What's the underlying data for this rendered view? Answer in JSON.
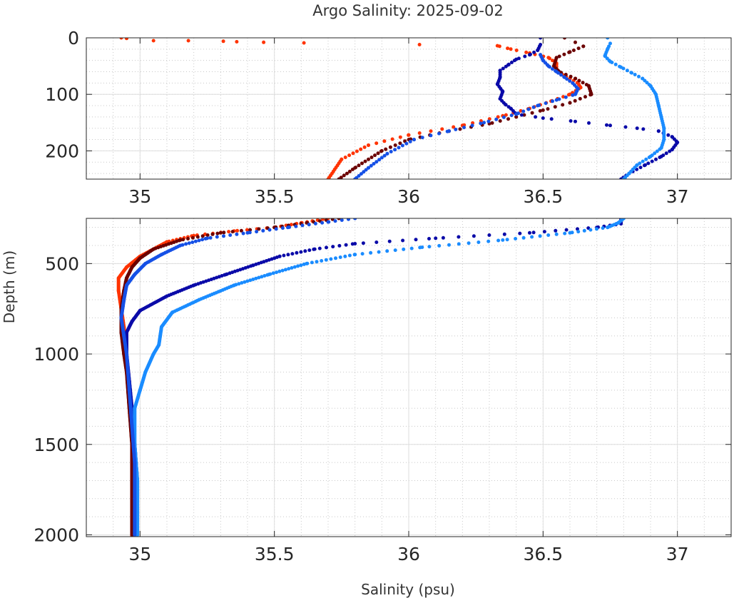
{
  "chart_data": {
    "type": "scatter",
    "title": "Argo Salinity: 2025-09-02",
    "xlabel": "Salinity (psu)",
    "ylabel": "Depth (m)",
    "grid": true,
    "grid_minor": true,
    "y_inverted": true,
    "panels": [
      {
        "id": "upper",
        "xlim": [
          34.8,
          37.2
        ],
        "ylim": [
          0,
          250
        ],
        "xticks": [
          35,
          35.5,
          36,
          36.5,
          37
        ],
        "xtick_labels": [
          "35",
          "35.5",
          "36",
          "36.5",
          "37"
        ],
        "yticks": [
          0,
          100,
          200
        ],
        "ytick_labels": [
          "0",
          "100",
          "200"
        ]
      },
      {
        "id": "lower",
        "xlim": [
          34.8,
          37.2
        ],
        "ylim": [
          250,
          2010
        ],
        "xticks": [
          35,
          35.5,
          36,
          36.5,
          37
        ],
        "xtick_labels": [
          "35",
          "35.5",
          "36",
          "36.5",
          "37"
        ],
        "yticks": [
          500,
          1000,
          1500,
          2000
        ],
        "ytick_labels": [
          "500",
          "1000",
          "1500",
          "2000"
        ]
      }
    ],
    "series": [
      {
        "color": "#ff3300",
        "profile": [
          [
            34.93,
            0
          ],
          [
            34.95,
            1
          ],
          [
            35.05,
            5
          ],
          [
            35.18,
            5
          ],
          [
            35.31,
            6
          ],
          [
            35.36,
            7
          ],
          [
            35.46,
            8
          ],
          [
            35.61,
            9
          ],
          [
            36.04,
            12
          ],
          [
            36.33,
            14
          ],
          [
            36.38,
            20
          ],
          [
            36.45,
            27
          ],
          [
            36.52,
            35
          ],
          [
            36.55,
            45
          ],
          [
            36.55,
            55
          ],
          [
            36.56,
            62
          ],
          [
            36.6,
            72
          ],
          [
            36.63,
            80
          ],
          [
            36.64,
            88
          ],
          [
            36.6,
            100
          ],
          [
            36.53,
            112
          ],
          [
            36.45,
            125
          ],
          [
            36.35,
            138
          ],
          [
            36.2,
            155
          ],
          [
            36.0,
            172
          ],
          [
            35.85,
            190
          ],
          [
            35.75,
            215
          ],
          [
            35.7,
            250
          ],
          [
            35.6,
            275
          ],
          [
            35.5,
            300
          ],
          [
            35.35,
            320
          ],
          [
            35.2,
            345
          ],
          [
            35.1,
            380
          ],
          [
            35.05,
            420
          ],
          [
            35.0,
            460
          ],
          [
            34.95,
            520
          ],
          [
            34.92,
            580
          ],
          [
            34.92,
            650
          ],
          [
            34.93,
            750
          ],
          [
            34.94,
            850
          ],
          [
            34.95,
            1000
          ],
          [
            34.96,
            1200
          ],
          [
            34.97,
            1400
          ],
          [
            34.97,
            1600
          ],
          [
            34.97,
            1800
          ],
          [
            34.97,
            2010
          ]
        ]
      },
      {
        "color": "#6b0000",
        "profile": [
          [
            36.58,
            0
          ],
          [
            36.62,
            8
          ],
          [
            36.65,
            15
          ],
          [
            36.6,
            25
          ],
          [
            36.55,
            35
          ],
          [
            36.54,
            50
          ],
          [
            36.56,
            60
          ],
          [
            36.62,
            72
          ],
          [
            36.67,
            85
          ],
          [
            36.68,
            100
          ],
          [
            36.6,
            115
          ],
          [
            36.5,
            128
          ],
          [
            36.4,
            140
          ],
          [
            36.3,
            152
          ],
          [
            36.15,
            165
          ],
          [
            36.0,
            180
          ],
          [
            35.9,
            200
          ],
          [
            35.8,
            230
          ],
          [
            35.74,
            250
          ],
          [
            35.62,
            275
          ],
          [
            35.5,
            300
          ],
          [
            35.3,
            330
          ],
          [
            35.15,
            370
          ],
          [
            35.05,
            420
          ],
          [
            35.0,
            470
          ],
          [
            34.97,
            520
          ],
          [
            34.95,
            580
          ],
          [
            34.94,
            650
          ],
          [
            34.93,
            750
          ],
          [
            34.93,
            880
          ],
          [
            34.94,
            1000
          ],
          [
            34.95,
            1100
          ],
          [
            34.96,
            1300
          ],
          [
            34.97,
            1500
          ],
          [
            34.97,
            1800
          ],
          [
            34.97,
            2000
          ]
        ]
      },
      {
        "color": "#0a0aa8",
        "profile": [
          [
            36.49,
            0
          ],
          [
            36.49,
            12
          ],
          [
            36.48,
            22
          ],
          [
            36.45,
            30
          ],
          [
            36.4,
            38
          ],
          [
            36.37,
            48
          ],
          [
            36.34,
            58
          ],
          [
            36.34,
            70
          ],
          [
            36.33,
            82
          ],
          [
            36.35,
            95
          ],
          [
            36.34,
            108
          ],
          [
            36.36,
            118
          ],
          [
            36.38,
            125
          ],
          [
            36.4,
            135
          ],
          [
            36.5,
            142
          ],
          [
            36.62,
            148
          ],
          [
            36.75,
            155
          ],
          [
            36.85,
            160
          ],
          [
            36.93,
            165
          ],
          [
            36.98,
            175
          ],
          [
            37.0,
            185
          ],
          [
            36.98,
            198
          ],
          [
            36.94,
            210
          ],
          [
            36.88,
            225
          ],
          [
            36.82,
            240
          ],
          [
            36.79,
            250
          ],
          [
            36.79,
            280
          ],
          [
            36.7,
            300
          ],
          [
            36.45,
            330
          ],
          [
            36.1,
            360
          ],
          [
            35.8,
            390
          ],
          [
            35.65,
            420
          ],
          [
            35.52,
            460
          ],
          [
            35.42,
            510
          ],
          [
            35.32,
            560
          ],
          [
            35.2,
            620
          ],
          [
            35.1,
            680
          ],
          [
            35.0,
            760
          ],
          [
            34.97,
            820
          ],
          [
            34.95,
            880
          ],
          [
            34.95,
            1000
          ],
          [
            34.96,
            1150
          ],
          [
            34.97,
            1300
          ],
          [
            34.98,
            1500
          ],
          [
            34.99,
            1700
          ],
          [
            34.99,
            1850
          ],
          [
            34.99,
            2000
          ]
        ]
      },
      {
        "color": "#1a8cff",
        "profile": [
          [
            36.74,
            0
          ],
          [
            36.75,
            10
          ],
          [
            36.74,
            20
          ],
          [
            36.73,
            32
          ],
          [
            36.75,
            42
          ],
          [
            36.79,
            52
          ],
          [
            36.83,
            62
          ],
          [
            36.87,
            72
          ],
          [
            36.9,
            85
          ],
          [
            36.92,
            100
          ],
          [
            36.93,
            120
          ],
          [
            36.94,
            140
          ],
          [
            36.95,
            160
          ],
          [
            36.95,
            180
          ],
          [
            36.94,
            195
          ],
          [
            36.9,
            210
          ],
          [
            36.85,
            225
          ],
          [
            36.82,
            240
          ],
          [
            36.8,
            250
          ],
          [
            36.78,
            275
          ],
          [
            36.74,
            300
          ],
          [
            36.6,
            330
          ],
          [
            36.35,
            370
          ],
          [
            36.05,
            410
          ],
          [
            35.8,
            450
          ],
          [
            35.62,
            500
          ],
          [
            35.48,
            560
          ],
          [
            35.35,
            620
          ],
          [
            35.22,
            700
          ],
          [
            35.12,
            770
          ],
          [
            35.08,
            850
          ],
          [
            35.07,
            950
          ],
          [
            35.05,
            1000
          ],
          [
            35.02,
            1100
          ],
          [
            35.0,
            1200
          ],
          [
            34.98,
            1300
          ],
          [
            34.98,
            1500
          ],
          [
            34.99,
            1700
          ],
          [
            34.99,
            1850
          ],
          [
            34.99,
            2000
          ]
        ]
      },
      {
        "color": "#1550e6",
        "profile": [
          [
            36.49,
            30
          ],
          [
            36.5,
            40
          ],
          [
            36.52,
            50
          ],
          [
            36.55,
            60
          ],
          [
            36.58,
            70
          ],
          [
            36.61,
            80
          ],
          [
            36.63,
            90
          ],
          [
            36.62,
            100
          ],
          [
            36.55,
            110
          ],
          [
            36.48,
            120
          ],
          [
            36.4,
            135
          ],
          [
            36.28,
            150
          ],
          [
            36.15,
            165
          ],
          [
            36.02,
            180
          ],
          [
            35.92,
            205
          ],
          [
            35.85,
            230
          ],
          [
            35.8,
            250
          ],
          [
            35.7,
            270
          ],
          [
            35.55,
            300
          ],
          [
            35.4,
            330
          ],
          [
            35.25,
            360
          ],
          [
            35.15,
            400
          ],
          [
            35.08,
            450
          ],
          [
            35.02,
            500
          ],
          [
            34.98,
            560
          ],
          [
            34.95,
            620
          ],
          [
            34.94,
            700
          ],
          [
            34.93,
            800
          ],
          [
            34.94,
            900
          ],
          [
            34.95,
            1000
          ],
          [
            34.96,
            1200
          ],
          [
            34.97,
            1400
          ],
          [
            34.98,
            1600
          ],
          [
            34.98,
            1800
          ],
          [
            34.98,
            2000
          ]
        ]
      }
    ]
  }
}
